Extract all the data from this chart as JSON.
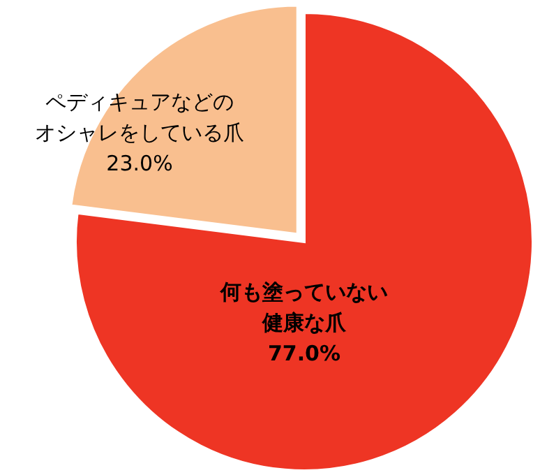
{
  "chart_data": {
    "type": "pie",
    "categories": [
      "何も塗っていない健康な爪",
      "ペディキュアなどのオシャレをしている爪"
    ],
    "values": [
      77.0,
      23.0
    ],
    "colors": [
      "#ee3524",
      "#f9bf8f"
    ],
    "value_labels": [
      "77.0%",
      "23.0%"
    ]
  }
}
